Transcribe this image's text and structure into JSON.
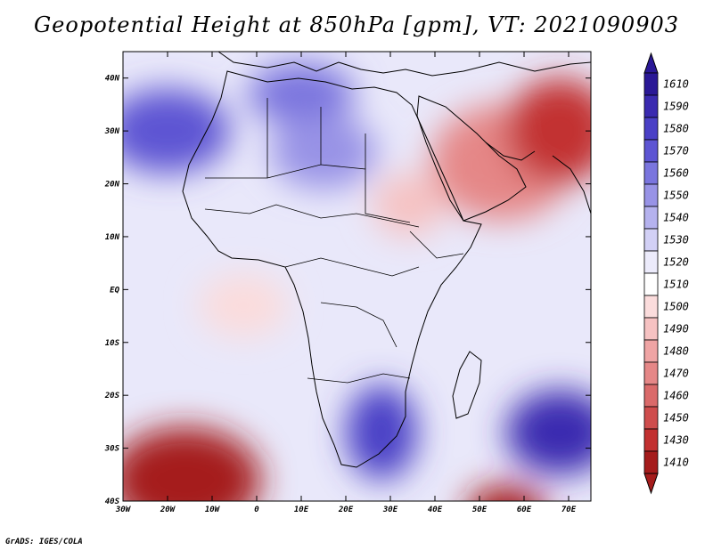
{
  "title": "Geopotential Height at 850hPa [gpm], VT: 2021090903",
  "credit": "GrADS: IGES/COLA",
  "map": {
    "variable": "Geopotential Height",
    "level": "850hPa",
    "units": "gpm",
    "valid_time": "2021090903",
    "lon_range": [
      -30,
      75
    ],
    "lat_range": [
      -40,
      45
    ],
    "lat_ticks": [
      {
        "value": 40,
        "label": "40N"
      },
      {
        "value": 30,
        "label": "30N"
      },
      {
        "value": 20,
        "label": "20N"
      },
      {
        "value": 10,
        "label": "10N"
      },
      {
        "value": 0,
        "label": "EQ"
      },
      {
        "value": -10,
        "label": "10S"
      },
      {
        "value": -20,
        "label": "20S"
      },
      {
        "value": -30,
        "label": "30S"
      },
      {
        "value": -40,
        "label": "40S"
      }
    ],
    "lon_ticks": [
      {
        "value": -30,
        "label": "30W"
      },
      {
        "value": -20,
        "label": "20W"
      },
      {
        "value": -10,
        "label": "10W"
      },
      {
        "value": 0,
        "label": "0"
      },
      {
        "value": 10,
        "label": "10E"
      },
      {
        "value": 20,
        "label": "20E"
      },
      {
        "value": 30,
        "label": "30E"
      },
      {
        "value": 40,
        "label": "40E"
      },
      {
        "value": 50,
        "label": "50E"
      },
      {
        "value": 60,
        "label": "60E"
      },
      {
        "value": 70,
        "label": "70E"
      }
    ],
    "field_features": [
      {
        "name": "subtropical-high-north-atlantic",
        "lon": -20,
        "lat": 30,
        "value": 1575,
        "rlon": 14,
        "rlat": 8
      },
      {
        "name": "mediterranean-high",
        "lon": 10,
        "lat": 37,
        "value": 1560,
        "rlon": 12,
        "rlat": 6
      },
      {
        "name": "sahara-ridge",
        "lon": 15,
        "lat": 26,
        "value": 1550,
        "rlon": 12,
        "rlat": 7
      },
      {
        "name": "arabia-heat-low",
        "lon": 55,
        "lat": 24,
        "value": 1470,
        "rlon": 16,
        "rlat": 11
      },
      {
        "name": "iran-heat-low",
        "lon": 68,
        "lat": 30,
        "value": 1445,
        "rlon": 12,
        "rlat": 10
      },
      {
        "name": "east-africa-low",
        "lon": 34,
        "lat": 16,
        "value": 1495,
        "rlon": 8,
        "rlat": 6
      },
      {
        "name": "south-atlantic-low",
        "lon": -16,
        "lat": -36,
        "value": 1410,
        "rlon": 17,
        "rlat": 10
      },
      {
        "name": "indian-ocean-low",
        "lon": 56,
        "lat": -42,
        "value": 1425,
        "rlon": 9,
        "rlat": 5
      },
      {
        "name": "southern-africa-high",
        "lon": 28,
        "lat": -27,
        "value": 1580,
        "rlon": 8,
        "rlat": 9
      },
      {
        "name": "mascarene-high",
        "lon": 68,
        "lat": -27,
        "value": 1590,
        "rlon": 12,
        "rlat": 8
      },
      {
        "name": "equatorial-atlantic-low",
        "lon": -3,
        "lat": -3,
        "value": 1500,
        "rlon": 10,
        "rlat": 6
      }
    ]
  },
  "colorbar": {
    "labels": [
      "1610",
      "1590",
      "1580",
      "1570",
      "1560",
      "1550",
      "1540",
      "1530",
      "1520",
      "1510",
      "1500",
      "1490",
      "1480",
      "1470",
      "1460",
      "1450",
      "1430",
      "1410"
    ],
    "colors": [
      "#2a1896",
      "#3a2ab0",
      "#4a40c6",
      "#5d55d3",
      "#7a75de",
      "#9893e6",
      "#b5b2ee",
      "#d2d0f5",
      "#ecebfb",
      "#ffffff",
      "#fbdcdc",
      "#f6c2c2",
      "#efa4a4",
      "#e58787",
      "#da6a6a",
      "#cf4d4d",
      "#c23030",
      "#a51c1c"
    ]
  }
}
